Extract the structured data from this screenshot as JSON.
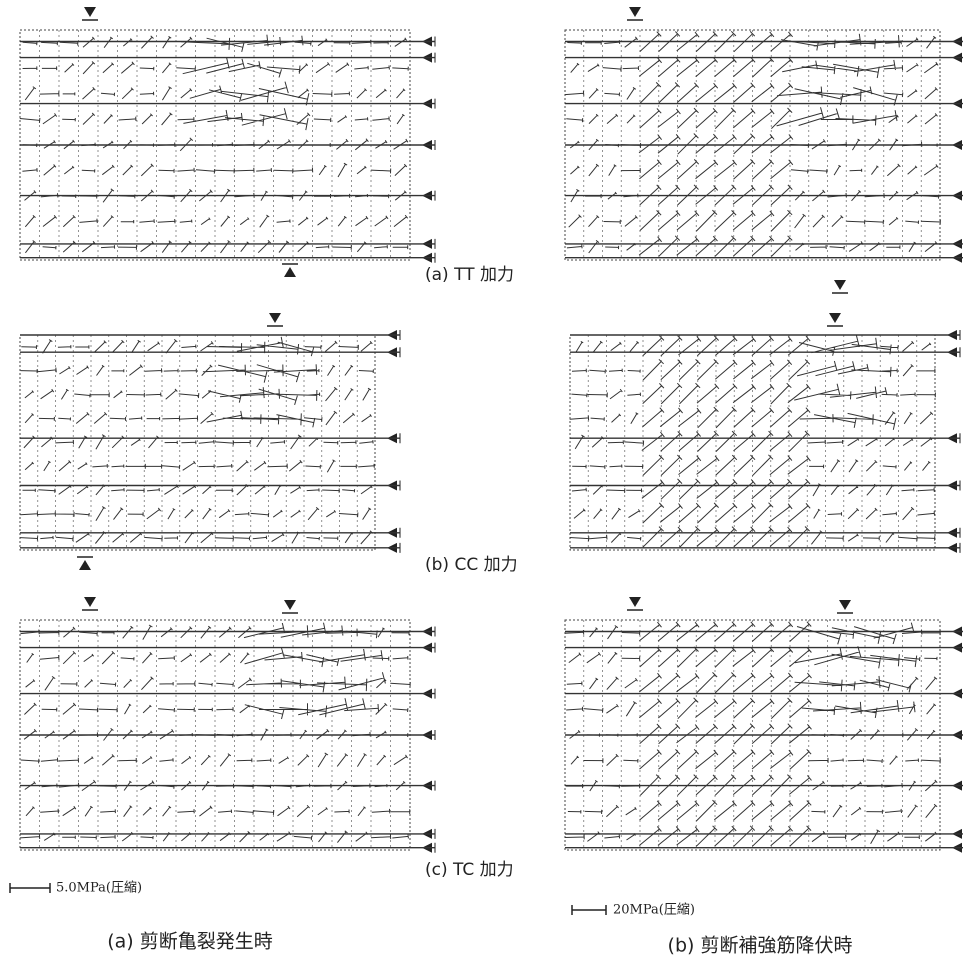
{
  "load_cases": [
    {
      "label": "(a) TT 加力"
    },
    {
      "label": "(b) CC 加力"
    },
    {
      "label": "(c) TC 加力"
    }
  ],
  "scale_bars": [
    {
      "label": "5.0MPa(圧縮)"
    },
    {
      "label": "20MPa(圧縮)"
    }
  ],
  "columns": [
    {
      "caption": "(a) 剪断亀裂発生時"
    },
    {
      "caption": "(b) 剪断補強筋降伏時"
    }
  ]
}
